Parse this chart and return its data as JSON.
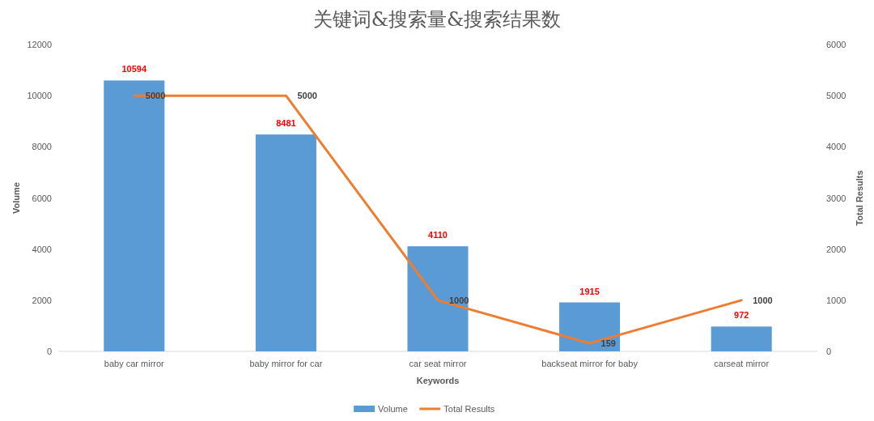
{
  "chart_data": {
    "type": "bar",
    "title": "关键词&搜索量&搜索结果数",
    "xlabel": "Keywords",
    "ylabel": "Volume",
    "y2label": "Total Results",
    "categories": [
      "baby car mirror",
      "baby mirror for car",
      "car seat mirror",
      "backseat mirror for baby",
      "carseat mirror"
    ],
    "series": [
      {
        "name": "Volume",
        "color": "#5b9bd5",
        "values": [
          10594,
          8481,
          4110,
          1915,
          972
        ]
      },
      {
        "name": "Total Results",
        "type": "line",
        "axis": "y2",
        "color": "#ed7d31",
        "values": [
          5000,
          5000,
          1000,
          159,
          1000
        ]
      }
    ],
    "ylim": [
      0,
      12000
    ],
    "yticks": [
      0,
      2000,
      4000,
      6000,
      8000,
      10000,
      12000
    ],
    "y2lim": [
      0,
      6000
    ],
    "y2ticks": [
      0,
      1000,
      2000,
      3000,
      4000,
      5000,
      6000
    ],
    "data_labels": true,
    "legend": "bottom",
    "grid": false
  }
}
